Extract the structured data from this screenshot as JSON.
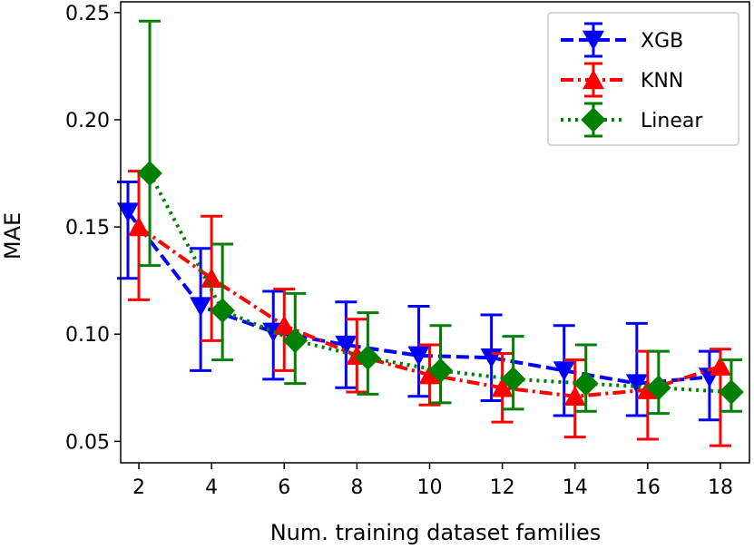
{
  "chart_data": {
    "type": "line",
    "title": "",
    "xlabel": "Num. training dataset families",
    "ylabel": "MAE",
    "xlim": [
      1.5,
      18.8
    ],
    "ylim": [
      0.04,
      0.255
    ],
    "xticks": [
      2,
      4,
      6,
      8,
      10,
      12,
      14,
      16,
      18
    ],
    "yticks": [
      0.05,
      0.1,
      0.15,
      0.2,
      0.25
    ],
    "xtick_labels": [
      "2",
      "4",
      "6",
      "8",
      "10",
      "12",
      "14",
      "16",
      "18"
    ],
    "ytick_labels": [
      "0.05",
      "0.10",
      "0.15",
      "0.20",
      "0.25"
    ],
    "grid": false,
    "legend_position": "top-right",
    "series": [
      {
        "name": "XGB",
        "color": "#0000ff",
        "marker": "triangle-down",
        "linestyle": "dashed",
        "x": [
          1.7,
          3.7,
          5.7,
          7.7,
          9.7,
          11.7,
          13.7,
          15.7,
          17.7
        ],
        "values": [
          0.157,
          0.113,
          0.101,
          0.095,
          0.09,
          0.089,
          0.083,
          0.077,
          0.08
        ],
        "yerr_low": [
          0.126,
          0.083,
          0.079,
          0.075,
          0.071,
          0.069,
          0.062,
          0.062,
          0.06
        ],
        "yerr_high": [
          0.171,
          0.14,
          0.12,
          0.115,
          0.113,
          0.109,
          0.104,
          0.105,
          0.092
        ]
      },
      {
        "name": "KNN",
        "color": "#ff0000",
        "marker": "triangle-up",
        "linestyle": "dashdot",
        "x": [
          2.0,
          4.0,
          6.0,
          8.0,
          10.0,
          12.0,
          14.0,
          16.0,
          18.0
        ],
        "values": [
          0.15,
          0.126,
          0.104,
          0.09,
          0.081,
          0.075,
          0.071,
          0.074,
          0.085
        ],
        "yerr_low": [
          0.116,
          0.097,
          0.083,
          0.073,
          0.067,
          0.059,
          0.052,
          0.051,
          0.048
        ],
        "yerr_high": [
          0.176,
          0.155,
          0.121,
          0.107,
          0.095,
          0.091,
          0.088,
          0.092,
          0.093
        ]
      },
      {
        "name": "Linear",
        "color": "#008000",
        "marker": "diamond",
        "linestyle": "dotted",
        "x": [
          2.3,
          4.3,
          6.3,
          8.3,
          10.3,
          12.3,
          14.3,
          16.3,
          18.3
        ],
        "values": [
          0.175,
          0.111,
          0.097,
          0.089,
          0.083,
          0.079,
          0.077,
          0.075,
          0.073
        ],
        "yerr_low": [
          0.132,
          0.088,
          0.077,
          0.072,
          0.068,
          0.065,
          0.064,
          0.063,
          0.064
        ],
        "yerr_high": [
          0.246,
          0.142,
          0.119,
          0.11,
          0.104,
          0.099,
          0.095,
          0.092,
          0.088
        ]
      }
    ]
  }
}
